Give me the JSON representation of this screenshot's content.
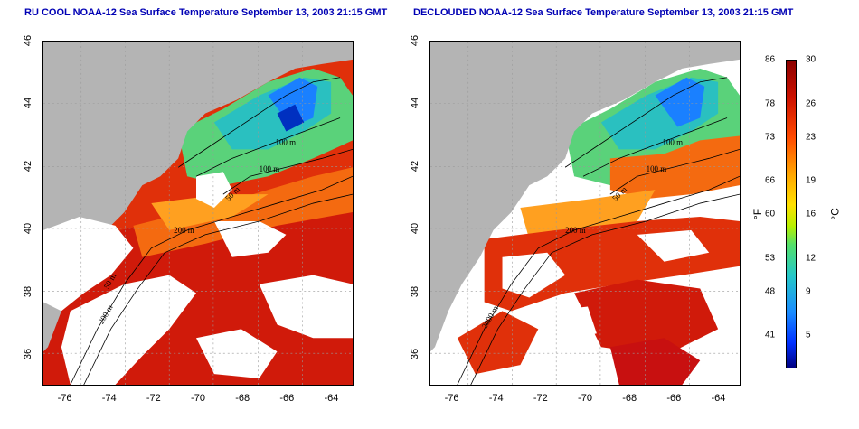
{
  "titles": {
    "left": "RU COOL NOAA-12 Sea Surface Temperature September 13, 2003 21:15 GMT",
    "right": "DECLOUDED NOAA-12 Sea Surface Temperature September 13, 2003 21:15 GMT"
  },
  "axes": {
    "x_ticks": [
      "-76",
      "-74",
      "-72",
      "-70",
      "-68",
      "-66",
      "-64"
    ],
    "y_ticks": [
      "36",
      "38",
      "40",
      "42",
      "44",
      "46"
    ],
    "lon_range": [
      -77,
      -63
    ],
    "lat_range": [
      35,
      46
    ]
  },
  "contour_labels": {
    "left": [
      "100 m",
      "100 m",
      "50 m",
      "200 m",
      "50 m",
      "200 m"
    ],
    "right": [
      "100 m",
      "100 m",
      "50 m",
      "200 m",
      "2000 m"
    ]
  },
  "colorbar": {
    "fahrenheit_ticks": [
      "86",
      "78",
      "73",
      "66",
      "60",
      "53",
      "48",
      "41"
    ],
    "celsius_ticks": [
      "30",
      "26",
      "23",
      "19",
      "16",
      "12",
      "9",
      "5"
    ],
    "unit_f": "°F",
    "unit_c": "°C",
    "range_c": [
      2,
      30
    ]
  },
  "colors": {
    "land": "#b4b4b4",
    "cloud": "#ffffff",
    "title": "#0000b4"
  }
}
